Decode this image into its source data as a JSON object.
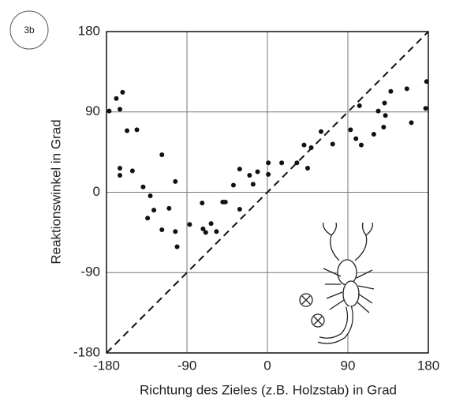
{
  "chart_data": {
    "type": "scatter",
    "label": "3b",
    "xlabel": "Richtung des Zieles (z.B. Holzstab) in Grad",
    "ylabel": "Reaktionswinkel in Grad",
    "xlim": [
      -180,
      180
    ],
    "ylim": [
      -180,
      180
    ],
    "xticks": [
      -180,
      -90,
      0,
      90,
      180
    ],
    "yticks": [
      -180,
      -90,
      0,
      90,
      180
    ],
    "grid": true,
    "color": "#111111",
    "x": [
      -177,
      -169,
      -162,
      -165,
      -157,
      -146,
      -165,
      -165,
      -151,
      -139,
      -131,
      -134,
      -127,
      -118,
      -118,
      -110,
      -103,
      -103,
      -101,
      -87,
      -73,
      -72,
      -69,
      -63,
      -57,
      -50,
      -47,
      -38,
      -31,
      -31,
      -20,
      -16,
      -11,
      1,
      1,
      16,
      33,
      41,
      45,
      49,
      60,
      73,
      93,
      99,
      105,
      103,
      119,
      124,
      130,
      131,
      132,
      138,
      156,
      161,
      177,
      178
    ],
    "y": [
      91,
      105,
      112,
      93,
      69,
      70,
      27,
      19,
      24,
      6,
      -4,
      -29,
      -20,
      42,
      -42,
      -18,
      12,
      -44,
      -61,
      -36,
      -12,
      -41,
      -45,
      -35,
      -44,
      -11,
      -11,
      8,
      26,
      -19,
      19,
      9,
      23,
      33,
      20,
      33,
      33,
      53,
      27,
      50,
      68,
      54,
      70,
      60,
      53,
      97,
      65,
      91,
      73,
      100,
      86,
      113,
      116,
      78,
      94,
      124
    ]
  }
}
